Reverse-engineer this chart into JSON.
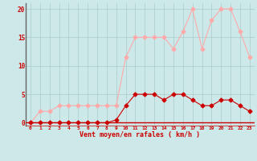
{
  "x": [
    0,
    1,
    2,
    3,
    4,
    5,
    6,
    7,
    8,
    9,
    10,
    11,
    12,
    13,
    14,
    15,
    16,
    17,
    18,
    19,
    20,
    21,
    22,
    23
  ],
  "y_mean": [
    0,
    0,
    0,
    0,
    0,
    0,
    0,
    0,
    0,
    0.5,
    3,
    5,
    5,
    5,
    4,
    5,
    5,
    4,
    3,
    3,
    4,
    4,
    3,
    2
  ],
  "y_gust": [
    0,
    2,
    2,
    3,
    3,
    3,
    3,
    3,
    3,
    3,
    11.5,
    15,
    15,
    15,
    15,
    13,
    16,
    20,
    13,
    18,
    20,
    20,
    16,
    11.5
  ],
  "color_mean": "#cc0000",
  "color_gust": "#ffaaaa",
  "bg_color": "#cce8e8",
  "grid_color": "#aacccc",
  "xlabel": "Vent moyen/en rafales ( km/h )",
  "yticks": [
    0,
    5,
    10,
    15,
    20
  ],
  "xlim": [
    -0.5,
    23.5
  ],
  "ylim": [
    -0.5,
    21
  ],
  "marker_size": 2.5,
  "line_width": 0.8
}
